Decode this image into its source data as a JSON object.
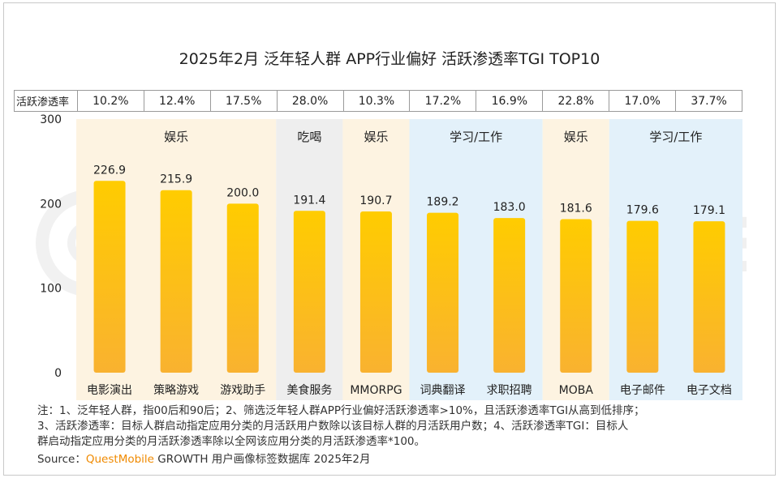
{
  "title": "2025年2月 泛年轻人群 APP行业偏好 活跃渗透率TGI TOP10",
  "penetration_row": {
    "header": "活跃渗透率",
    "values": [
      "10.2%",
      "12.4%",
      "17.5%",
      "28.0%",
      "10.3%",
      "17.2%",
      "16.9%",
      "22.8%",
      "17.0%",
      "37.7%"
    ]
  },
  "groups": [
    {
      "label": "娱乐",
      "color": "#fdf3e1",
      "start": 0,
      "end": 2
    },
    {
      "label": "吃喝",
      "color": "#eeeeee",
      "start": 3,
      "end": 3
    },
    {
      "label": "娱乐",
      "color": "#fdf3e1",
      "start": 4,
      "end": 4
    },
    {
      "label": "学习/工作",
      "color": "#e3f1fa",
      "start": 5,
      "end": 6
    },
    {
      "label": "娱乐",
      "color": "#fdf3e1",
      "start": 7,
      "end": 7
    },
    {
      "label": "学习/工作",
      "color": "#e3f1fa",
      "start": 8,
      "end": 9
    }
  ],
  "chart_data": {
    "type": "bar",
    "title": "2025年2月 泛年轻人群 APP行业偏好 活跃渗透率TGI TOP10",
    "categories": [
      "电影演出",
      "策略游戏",
      "游戏助手",
      "美食服务",
      "MMORPG",
      "词典翻译",
      "求职招聘",
      "MOBA",
      "电子邮件",
      "电子文档"
    ],
    "values": [
      226.9,
      215.9,
      200.0,
      191.4,
      190.7,
      189.2,
      183.0,
      181.6,
      179.6,
      179.1
    ],
    "value_labels": [
      "226.9",
      "215.9",
      "200.0",
      "191.4",
      "190.7",
      "189.2",
      "183.0",
      "181.6",
      "179.6",
      "179.1"
    ],
    "yticks": [
      "0",
      "100",
      "200",
      "300"
    ],
    "ylim": [
      0,
      300
    ],
    "xlabel": "",
    "ylabel": "",
    "grid": false,
    "bar_color_top": "#ffcc00",
    "bar_color_bottom": "#f9b230"
  },
  "notes": [
    "注：1、泛年轻人群，指00后和90后；2、筛选泛年轻人群APP行业偏好活跃渗透率>10%，且活跃渗透率TGI从高到低排序；",
    "3、活跃渗透率：目标人群启动指定应用分类的月活跃用户数除以该目标人群的月活跃用户数；4、活跃渗透率TGI：目标人",
    "群启动指定应用分类的月活跃渗透率除以全网该应用分类的月活跃渗透率*100。"
  ],
  "source": {
    "prefix": "Source：",
    "brand": "QuestMobile",
    "suffix": " GROWTH 用户画像标签数据库 2025年2月"
  }
}
